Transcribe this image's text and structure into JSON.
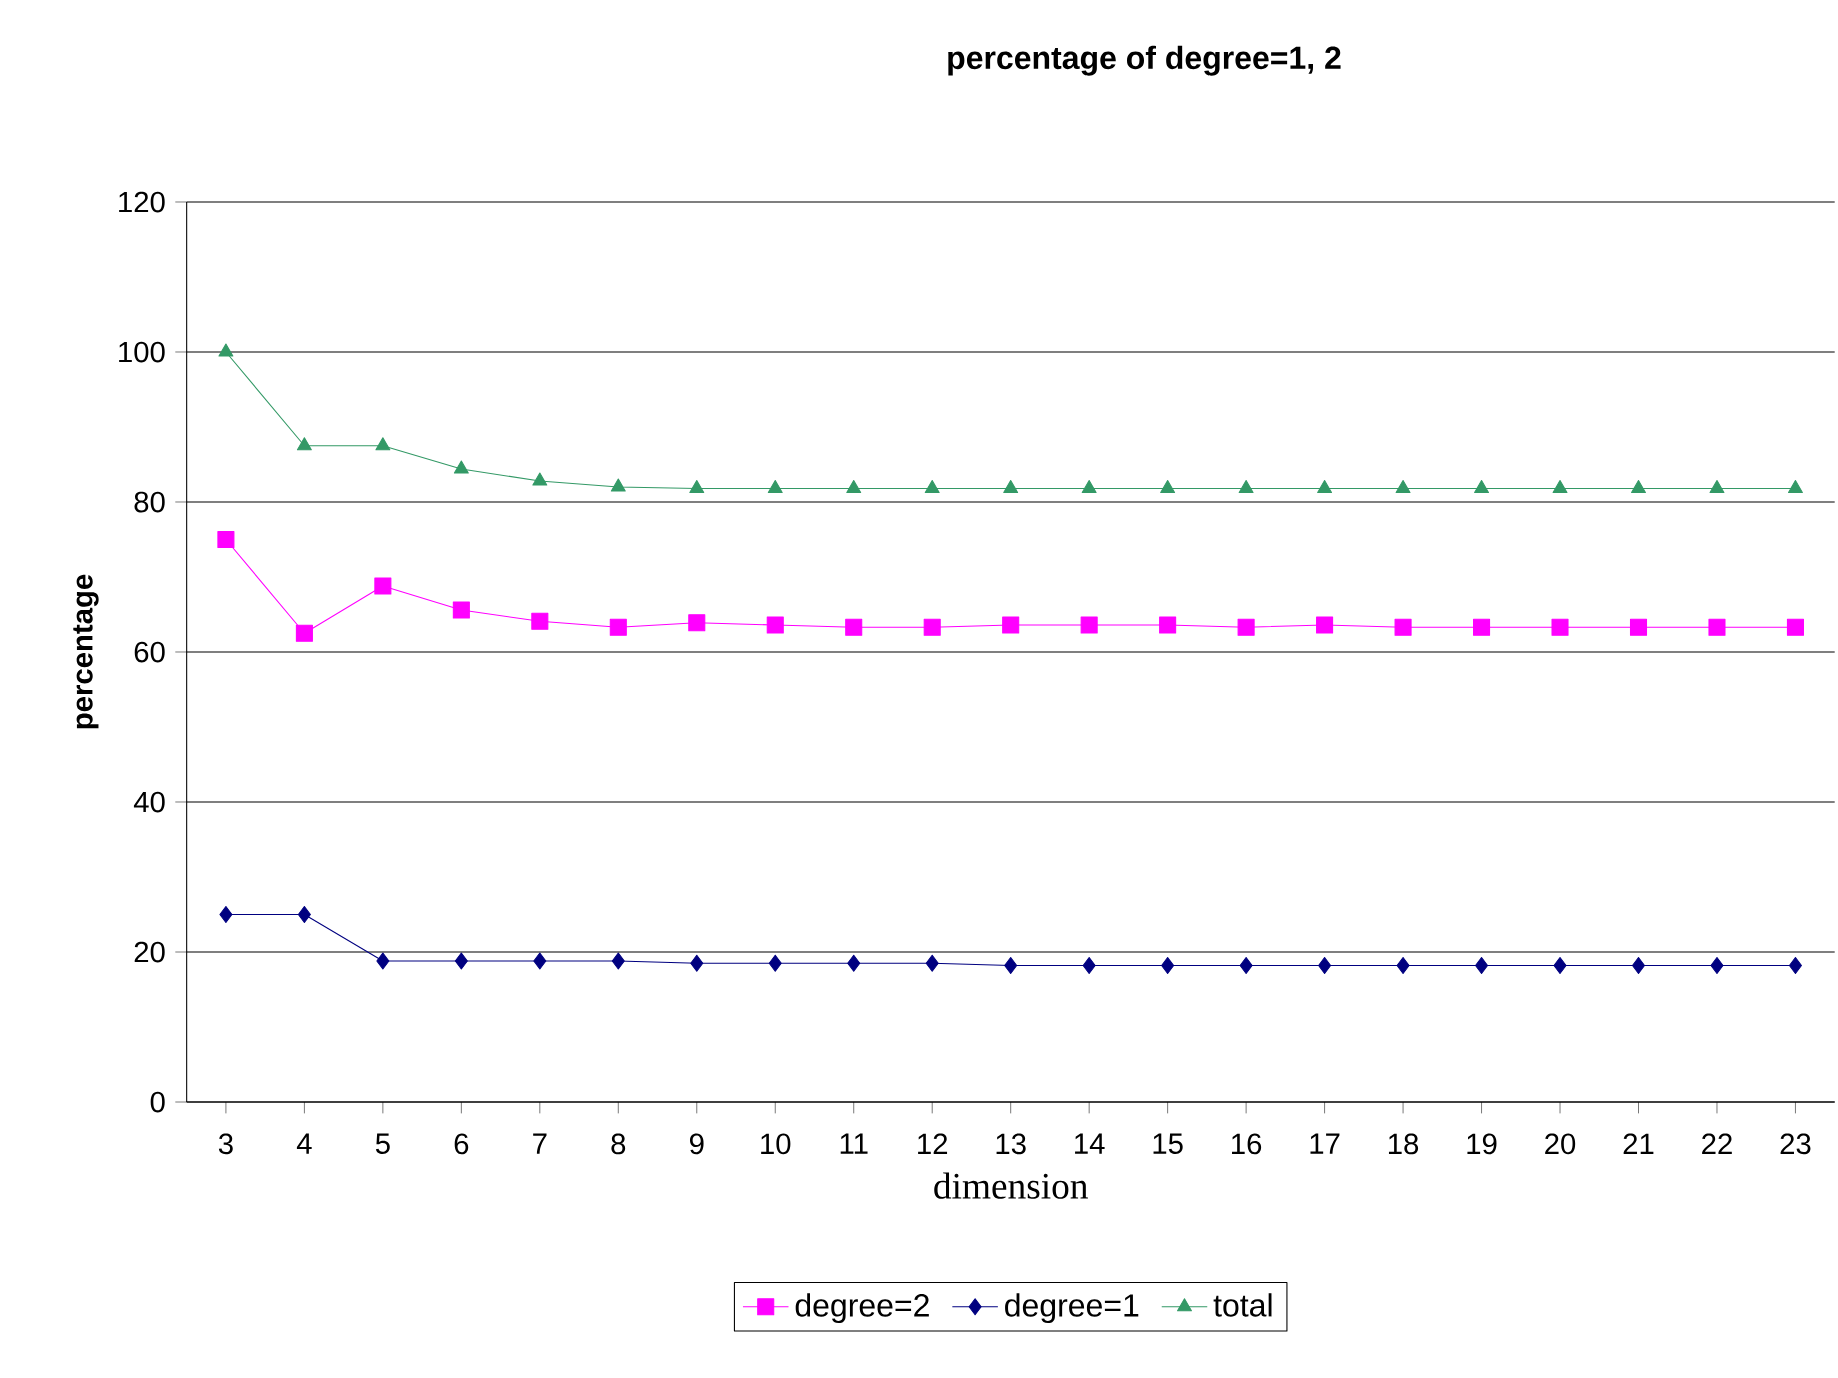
{
  "chart_data": {
    "type": "line",
    "title": "**percentage of degree=1, 2**",
    "xlabel": "dimension",
    "ylabel": "**percentage**",
    "categories": [
      "3",
      "4",
      "5",
      "6",
      "7",
      "8",
      "9",
      "10",
      "11",
      "12",
      "13",
      "14",
      "15",
      "16",
      "17",
      "18",
      "19",
      "20",
      "21",
      "22",
      "23"
    ],
    "series": [
      {
        "name": "degree=2",
        "color": "#ff00ff",
        "marker": "square",
        "values": [
          75,
          62.5,
          68.8,
          65.6,
          64.1,
          63.3,
          63.9,
          63.6,
          63.3,
          63.3,
          63.6,
          63.6,
          63.6,
          63.3,
          63.6,
          63.3,
          63.3,
          63.3,
          63.3,
          63.3,
          63.3
        ]
      },
      {
        "name": "degree=1",
        "color": "#000080",
        "marker": "diamond",
        "values": [
          25,
          25,
          18.8,
          18.8,
          18.8,
          18.8,
          18.5,
          18.5,
          18.5,
          18.5,
          18.2,
          18.2,
          18.2,
          18.2,
          18.2,
          18.2,
          18.2,
          18.2,
          18.2,
          18.2,
          18.2
        ]
      },
      {
        "name": "total",
        "color": "#339966",
        "marker": "triangle",
        "values": [
          100,
          87.5,
          87.5,
          84.4,
          82.8,
          82,
          81.8,
          81.8,
          81.8,
          81.8,
          81.8,
          81.8,
          81.8,
          81.8,
          81.8,
          81.8,
          81.8,
          81.8,
          81.8,
          81.8,
          81.8
        ]
      }
    ],
    "ylim": [
      0,
      120
    ],
    "yticks": [
      0,
      20,
      40,
      60,
      80,
      100,
      120
    ],
    "grid": "y",
    "legend": "bottom",
    "line_style": "solid"
  }
}
